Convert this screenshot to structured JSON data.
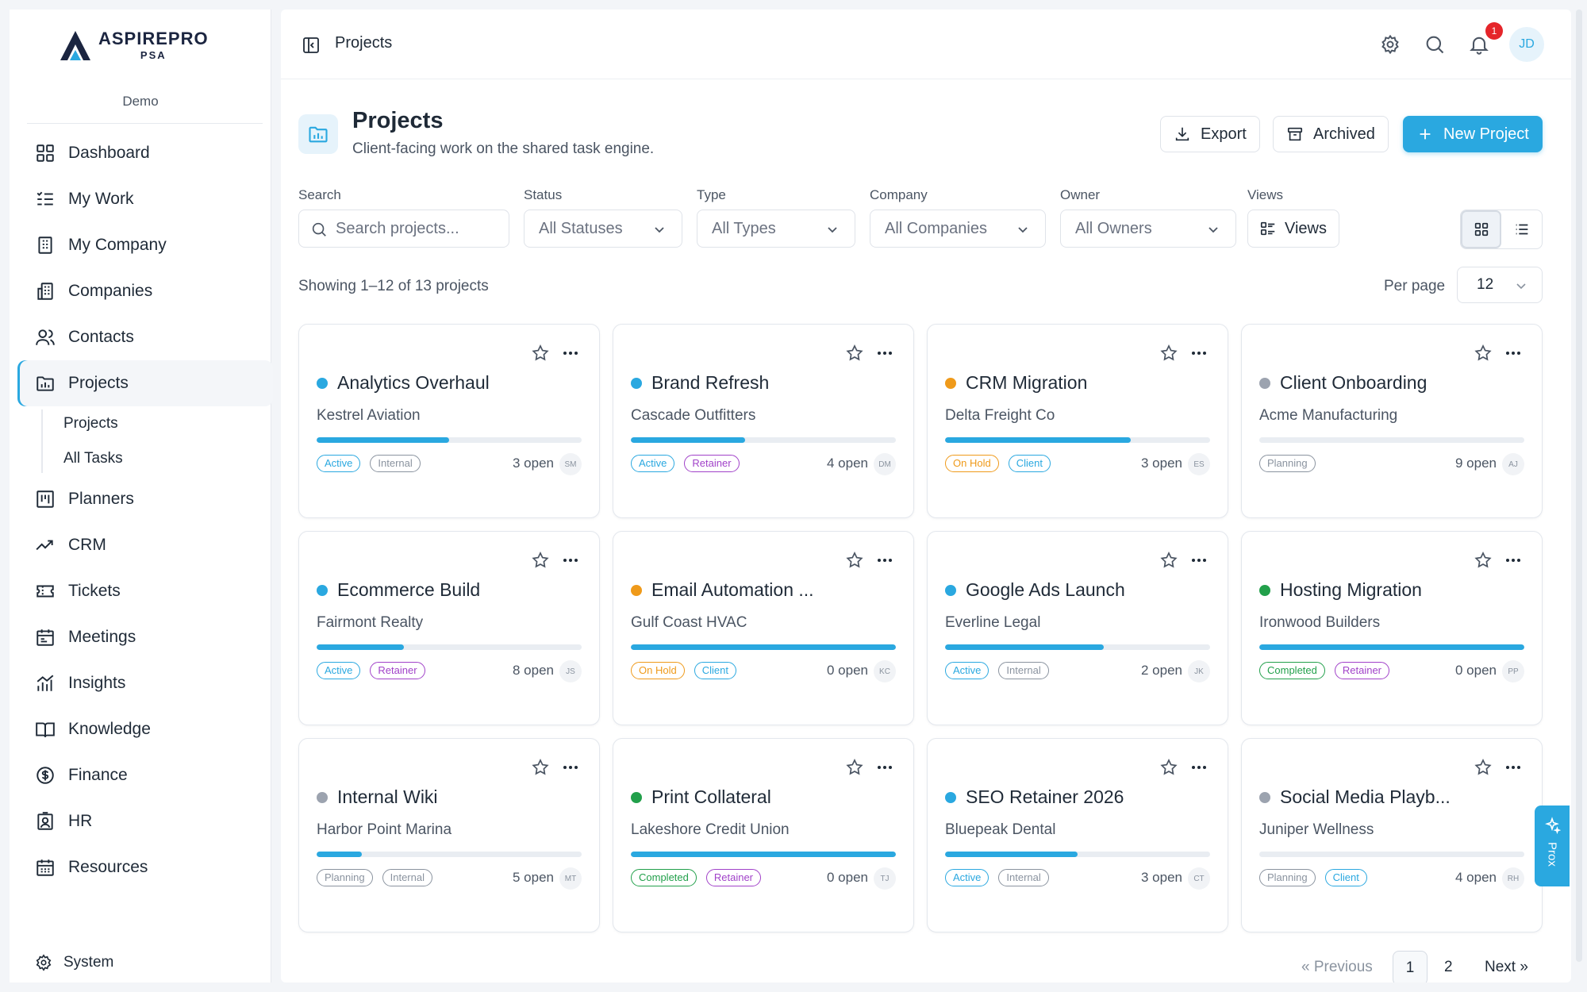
{
  "brand": {
    "name": "ASPIREPRO",
    "sub": "PSA",
    "tenant": "Demo"
  },
  "sidebar": {
    "items": [
      {
        "label": "Dashboard",
        "icon": "dashboard-icon"
      },
      {
        "label": "My Work",
        "icon": "checklist-icon"
      },
      {
        "label": "My Company",
        "icon": "building-icon"
      },
      {
        "label": "Companies",
        "icon": "buildings-icon"
      },
      {
        "label": "Contacts",
        "icon": "users-icon"
      },
      {
        "label": "Projects",
        "icon": "folder-icon",
        "active": true
      },
      {
        "label": "Planners",
        "icon": "kanban-icon"
      },
      {
        "label": "CRM",
        "icon": "trend-icon"
      },
      {
        "label": "Tickets",
        "icon": "ticket-icon"
      },
      {
        "label": "Meetings",
        "icon": "calendar-icon"
      },
      {
        "label": "Insights",
        "icon": "chart-icon"
      },
      {
        "label": "Knowledge",
        "icon": "book-icon"
      },
      {
        "label": "Finance",
        "icon": "dollar-icon"
      },
      {
        "label": "HR",
        "icon": "badge-icon"
      },
      {
        "label": "Resources",
        "icon": "calendar-grid-icon"
      }
    ],
    "sub_items": [
      "Projects",
      "All Tasks"
    ],
    "system": "System"
  },
  "topbar": {
    "title": "Projects",
    "notification_count": "1",
    "avatar": "JD"
  },
  "header": {
    "title": "Projects",
    "subtitle": "Client-facing work on the shared task engine.",
    "export": "Export",
    "archived": "Archived",
    "new_project": "New Project"
  },
  "filters": {
    "search_label": "Search",
    "search_placeholder": "Search projects...",
    "status_label": "Status",
    "status_value": "All Statuses",
    "type_label": "Type",
    "type_value": "All Types",
    "company_label": "Company",
    "company_value": "All Companies",
    "owner_label": "Owner",
    "owner_value": "All Owners",
    "views_label": "Views",
    "views_button": "Views"
  },
  "listing": {
    "showing": "Showing 1–12 of 13 projects",
    "per_page_label": "Per page",
    "per_page": "12"
  },
  "colors": {
    "accent": "#2aa8e0",
    "blue_dot": "#2aa8e0",
    "orange_dot": "#ef9a1a",
    "gray_dot": "#9ca3af",
    "green_dot": "#22a04b"
  },
  "projects": [
    {
      "title": "Analytics Overhaul",
      "company": "Kestrel Aviation",
      "dot": "#2aa8e0",
      "progress": 0.5,
      "status": "Active",
      "status_class": "active",
      "type": "Internal",
      "type_class": "internal",
      "open": "3 open",
      "owner": "SM"
    },
    {
      "title": "Brand Refresh",
      "company": "Cascade Outfitters",
      "dot": "#2aa8e0",
      "progress": 0.43,
      "status": "Active",
      "status_class": "active",
      "type": "Retainer",
      "type_class": "retainer",
      "open": "4 open",
      "owner": "DM"
    },
    {
      "title": "CRM Migration",
      "company": "Delta Freight Co",
      "dot": "#ef9a1a",
      "progress": 0.7,
      "status": "On Hold",
      "status_class": "onhold",
      "type": "Client",
      "type_class": "client",
      "open": "3 open",
      "owner": "ES"
    },
    {
      "title": "Client Onboarding",
      "company": "Acme Manufacturing",
      "dot": "#9ca3af",
      "progress": 0,
      "status": "Planning",
      "status_class": "planning",
      "type": "",
      "type_class": "",
      "open": "9 open",
      "owner": "AJ"
    },
    {
      "title": "Ecommerce Build",
      "company": "Fairmont Realty",
      "dot": "#2aa8e0",
      "progress": 0.33,
      "status": "Active",
      "status_class": "active",
      "type": "Retainer",
      "type_class": "retainer",
      "open": "8 open",
      "owner": "JS"
    },
    {
      "title": "Email Automation ...",
      "company": "Gulf Coast HVAC",
      "dot": "#ef9a1a",
      "progress": 1,
      "status": "On Hold",
      "status_class": "onhold",
      "type": "Client",
      "type_class": "client",
      "open": "0 open",
      "owner": "KC"
    },
    {
      "title": "Google Ads Launch",
      "company": "Everline Legal",
      "dot": "#2aa8e0",
      "progress": 0.6,
      "status": "Active",
      "status_class": "active",
      "type": "Internal",
      "type_class": "internal",
      "open": "2 open",
      "owner": "JK"
    },
    {
      "title": "Hosting Migration",
      "company": "Ironwood Builders",
      "dot": "#22a04b",
      "progress": 1,
      "status": "Completed",
      "status_class": "completed",
      "type": "Retainer",
      "type_class": "retainer",
      "open": "0 open",
      "owner": "PP"
    },
    {
      "title": "Internal Wiki",
      "company": "Harbor Point Marina",
      "dot": "#9ca3af",
      "progress": 0.17,
      "status": "Planning",
      "status_class": "planning",
      "type": "Internal",
      "type_class": "internal",
      "open": "5 open",
      "owner": "MT"
    },
    {
      "title": "Print Collateral",
      "company": "Lakeshore Credit Union",
      "dot": "#22a04b",
      "progress": 1,
      "status": "Completed",
      "status_class": "completed",
      "type": "Retainer",
      "type_class": "retainer",
      "open": "0 open",
      "owner": "TJ"
    },
    {
      "title": "SEO Retainer 2026",
      "company": "Bluepeak Dental",
      "dot": "#2aa8e0",
      "progress": 0.5,
      "status": "Active",
      "status_class": "active",
      "type": "Internal",
      "type_class": "internal",
      "open": "3 open",
      "owner": "CT"
    },
    {
      "title": "Social Media Playb...",
      "company": "Juniper Wellness",
      "dot": "#9ca3af",
      "progress": 0,
      "status": "Planning",
      "status_class": "planning",
      "type": "Client",
      "type_class": "client",
      "open": "4 open",
      "owner": "RH"
    }
  ],
  "pagination": {
    "prev": "« Previous",
    "page1": "1",
    "page2": "2",
    "next": "Next »"
  },
  "assistant": {
    "label": "Prox"
  }
}
